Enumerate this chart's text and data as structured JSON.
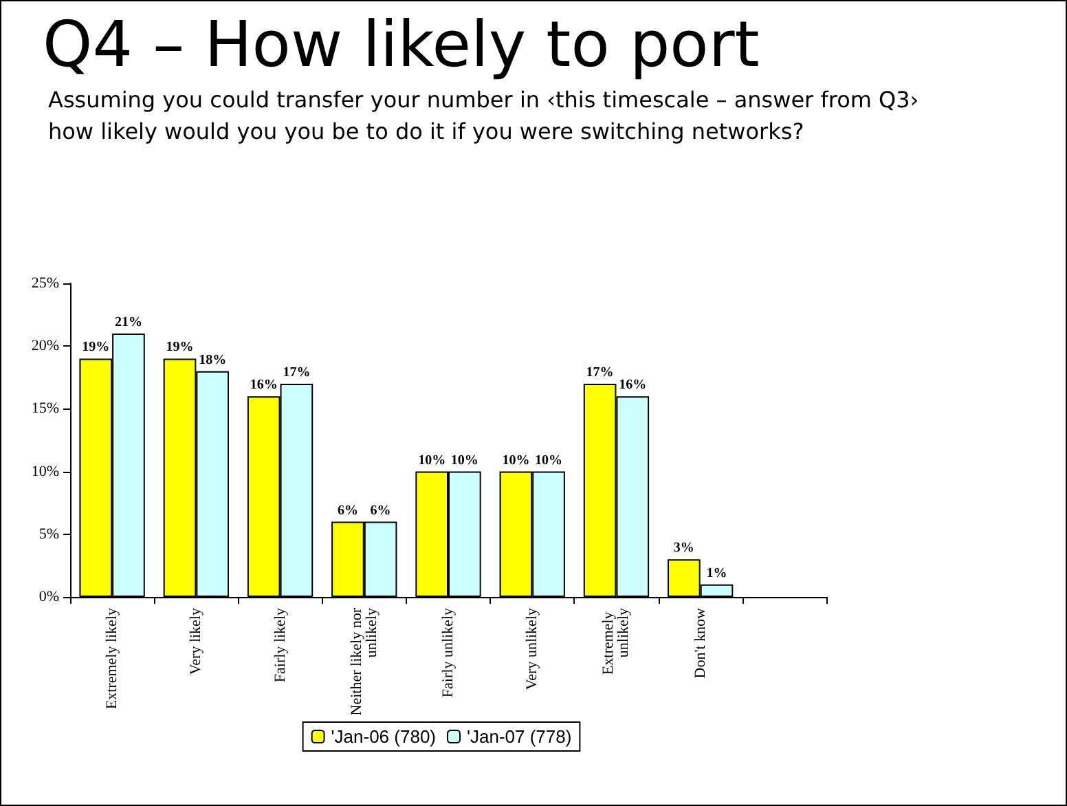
{
  "chart_data": {
    "type": "bar",
    "title": "Q4 – How likely to port",
    "subtitle": "Assuming you could transfer your number in ‹this timescale – answer from Q3› how likely would you you be to do it if you were switching networks?",
    "categories": [
      "Extremely likely",
      "Very likely",
      "Fairly likely",
      "Neither likely nor unlikely",
      "Fairly unlikely",
      "Very unlikely",
      "Extremely unlikely",
      "Don't know",
      null
    ],
    "series": [
      {
        "name": "'Jan-06 (780)",
        "color": "#ffff00",
        "values": [
          19,
          19,
          16,
          6,
          10,
          10,
          17,
          3,
          null
        ],
        "value_labels": [
          "19%",
          "19%",
          "16%",
          "6%",
          "10%",
          "10%",
          "17%",
          "3%",
          null
        ]
      },
      {
        "name": "'Jan-07 (778)",
        "color": "#ccffff",
        "values": [
          21,
          18,
          17,
          6,
          10,
          10,
          16,
          1,
          null
        ],
        "value_labels": [
          "21%",
          "18%",
          "17%",
          "6%",
          "10%",
          "10%",
          "16%",
          "1%",
          null
        ]
      }
    ],
    "ylim": [
      0,
      25
    ],
    "yticks": [
      {
        "value": 0,
        "label": "0%"
      },
      {
        "value": 5,
        "label": "5%"
      },
      {
        "value": 10,
        "label": "10%"
      },
      {
        "value": 15,
        "label": "15%"
      },
      {
        "value": 20,
        "label": "20%"
      },
      {
        "value": 25,
        "label": "25%"
      }
    ],
    "grid": false,
    "legend": "bottom"
  }
}
